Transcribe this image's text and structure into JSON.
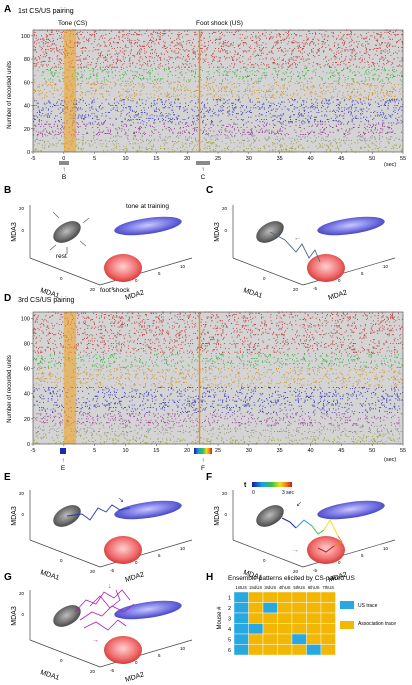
{
  "panels": {
    "A": {
      "letter": "A",
      "title": "1st CS/US pairing",
      "tone_label": "Tone (CS)",
      "shock_label": "Foot shock (US)",
      "ylabel": "Number of recorded units",
      "xunit": "(sec)",
      "xticks": [
        "-5",
        "0",
        "5",
        "10",
        "15",
        "20",
        "25",
        "30",
        "35",
        "40",
        "45",
        "50",
        "55"
      ],
      "yticks": [
        "0",
        "20",
        "40",
        "60",
        "80",
        "100"
      ],
      "marker_B": "B",
      "marker_C": "C"
    },
    "B": {
      "letter": "B",
      "label_tone": "tone at training",
      "label_rest": "rest",
      "label_shock": "foot shock",
      "axis_z": "MDA3",
      "axis_x": "MDA1",
      "axis_y": "MDA2",
      "ticks_x": [
        "0",
        "20"
      ],
      "ticks_y": [
        "-5",
        "0",
        "5",
        "10"
      ],
      "ticks_z": [
        "0",
        "20"
      ]
    },
    "C": {
      "letter": "C",
      "axis_z": "MDA3",
      "axis_x": "MDA1",
      "axis_y": "MDA2",
      "ticks_x": [
        "0",
        "20"
      ],
      "ticks_y": [
        "-5",
        "0",
        "5",
        "10"
      ],
      "ticks_z": [
        "0",
        "20"
      ]
    },
    "D": {
      "letter": "D",
      "title": "3rd CS/US pairing",
      "ylabel": "Number of recorded units",
      "xunit": "(sec)",
      "xticks": [
        "-5",
        "0",
        "5",
        "10",
        "15",
        "20",
        "25",
        "30",
        "35",
        "40",
        "45",
        "50",
        "55"
      ],
      "yticks": [
        "0",
        "20",
        "40",
        "60",
        "80",
        "100"
      ],
      "marker_E": "E",
      "marker_F": "F"
    },
    "E": {
      "letter": "E",
      "axis_z": "MDA3",
      "axis_x": "MDA1",
      "axis_y": "MDA2",
      "ticks_x": [
        "0",
        "20"
      ],
      "ticks_y": [
        "-5",
        "0",
        "5",
        "10"
      ],
      "ticks_z": [
        "0",
        "20"
      ]
    },
    "F": {
      "letter": "F",
      "time_label": "t",
      "scale_min": "0",
      "scale_max": "3 sec",
      "axis_z": "MDA3",
      "axis_x": "MDA1",
      "axis_y": "MDA2",
      "ticks_x": [
        "0",
        "20"
      ],
      "ticks_y": [
        "-5",
        "0",
        "5",
        "10"
      ],
      "ticks_z": [
        "0",
        "20"
      ]
    },
    "G": {
      "letter": "G",
      "axis_z": "MDA3",
      "axis_x": "MDA1",
      "axis_y": "MDA2",
      "ticks_x": [
        "0",
        "20"
      ],
      "ticks_y": [
        "-5",
        "0",
        "5",
        "10"
      ],
      "ticks_z": [
        "0",
        "20"
      ]
    },
    "H": {
      "letter": "H",
      "title": "Ensemble patterns elicited by CS-paired US",
      "ylabel": "Mouse #",
      "columns": [
        "1stUS",
        "2ndUS",
        "3rdUS",
        "4thUS",
        "5thUS",
        "6thUS",
        "7thUS"
      ],
      "rows": [
        "1",
        "2",
        "3",
        "4",
        "5",
        "6"
      ],
      "legend": [
        {
          "label": "US trace",
          "color": "#29a8e0"
        },
        {
          "label": "Association trace",
          "color": "#f2b705"
        }
      ]
    }
  },
  "chart_data": [
    {
      "type": "heatmap",
      "title": "1st CS/US pairing",
      "xlabel": "(sec)",
      "ylabel": "Number of recorded units",
      "xlim": [
        -5,
        55
      ],
      "ylim": [
        0,
        105
      ],
      "cs_interval_sec": [
        0,
        2
      ],
      "us_onset_sec": 22,
      "unit_groups": [
        {
          "range": [
            0,
            8
          ],
          "color": "#9a9a2a"
        },
        {
          "range": [
            9,
            14
          ],
          "color": "#808080"
        },
        {
          "range": [
            15,
            24
          ],
          "color": "#8b2a8b"
        },
        {
          "range": [
            25,
            45
          ],
          "color": "#2a2ab0"
        },
        {
          "range": [
            46,
            60
          ],
          "color": "#c88a1e"
        },
        {
          "range": [
            61,
            72
          ],
          "color": "#2aa82a"
        },
        {
          "range": [
            73,
            105
          ],
          "color": "#b82a2a"
        }
      ]
    },
    {
      "type": "heatmap",
      "title": "3rd CS/US pairing",
      "xlabel": "(sec)",
      "ylabel": "Number of recorded units",
      "xlim": [
        -5,
        55
      ],
      "ylim": [
        0,
        105
      ],
      "cs_interval_sec": [
        0,
        2
      ],
      "us_onset_sec": 22,
      "unit_groups": [
        {
          "range": [
            0,
            8
          ],
          "color": "#9a9a2a"
        },
        {
          "range": [
            9,
            14
          ],
          "color": "#808080"
        },
        {
          "range": [
            15,
            24
          ],
          "color": "#8b2a8b"
        },
        {
          "range": [
            25,
            45
          ],
          "color": "#2a2ab0"
        },
        {
          "range": [
            46,
            60
          ],
          "color": "#c88a1e"
        },
        {
          "range": [
            61,
            72
          ],
          "color": "#2aa82a"
        },
        {
          "range": [
            73,
            105
          ],
          "color": "#b82a2a"
        }
      ]
    },
    {
      "type": "table",
      "title": "Ensemble patterns elicited by CS-paired US",
      "xlabel": "",
      "ylabel": "Mouse #",
      "columns": [
        "1stUS",
        "2ndUS",
        "3rdUS",
        "4thUS",
        "5thUS",
        "6thUS",
        "7thUS"
      ],
      "rows": [
        "1",
        "2",
        "3",
        "4",
        "5",
        "6"
      ],
      "values": [
        [
          "US",
          "Association",
          "Association",
          "Association",
          "Association",
          "Association",
          "Association"
        ],
        [
          "US",
          "Association",
          "US",
          "Association",
          "Association",
          "Association",
          "Association"
        ],
        [
          "US",
          "Association",
          "Association",
          "Association",
          "Association",
          "Association",
          "Association"
        ],
        [
          "US",
          "US",
          "Association",
          "Association",
          "Association",
          "Association",
          "Association"
        ],
        [
          "US",
          "Association",
          "Association",
          "Association",
          "US",
          "Association",
          "Association"
        ],
        [
          "US",
          "Association",
          "Association",
          "Association",
          "Association",
          "US",
          "Association"
        ]
      ]
    }
  ]
}
